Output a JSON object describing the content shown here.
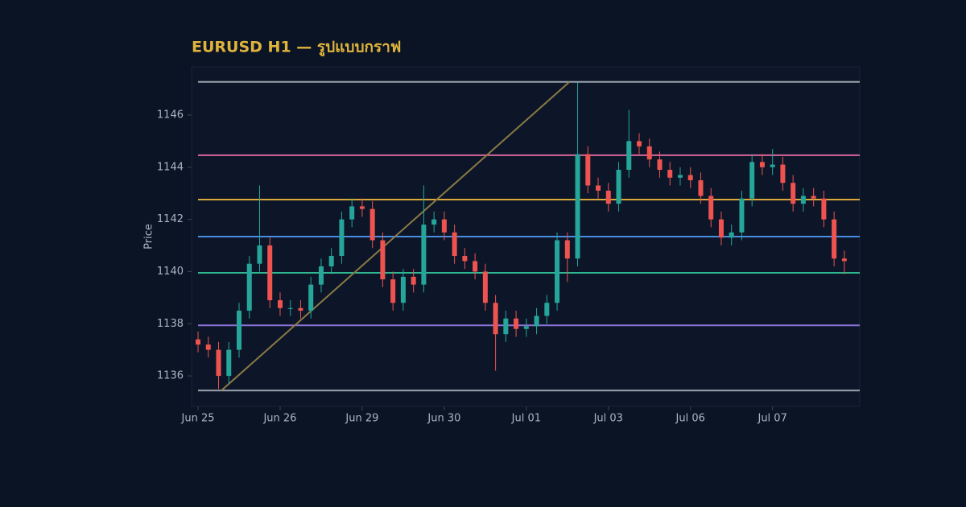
{
  "chart_data": {
    "type": "candlestick",
    "title": "EURUSD H1 — รูปแบบกราฟ",
    "y_label": "Price",
    "up_color": "#26a69a",
    "down_color": "#ef5350",
    "xlim": [
      -0.63,
      64.5
    ],
    "xticks": [
      {
        "value": 0,
        "label": "Jun 25"
      },
      {
        "value": 8,
        "label": "Jun 26"
      },
      {
        "value": 16,
        "label": "Jun 29"
      },
      {
        "value": 24,
        "label": "Jun 30"
      },
      {
        "value": 32,
        "label": "Jul 01"
      },
      {
        "value": 40,
        "label": "Jul 03"
      },
      {
        "value": 48,
        "label": "Jul 06"
      },
      {
        "value": 56,
        "label": "Jul 07"
      }
    ],
    "ylim": [
      1134.83,
      1147.85
    ],
    "yticks": [
      1136,
      1138,
      1140,
      1142,
      1144,
      1146
    ],
    "open": [
      1137.4,
      1137.2,
      1137.0,
      1136.0,
      1137.0,
      1138.5,
      1140.3,
      1141.0,
      1138.9,
      1138.6,
      1138.6,
      1138.5,
      1139.5,
      1140.2,
      1140.6,
      1142.0,
      1142.5,
      1142.4,
      1141.2,
      1139.7,
      1138.8,
      1139.8,
      1139.5,
      1141.8,
      1142.0,
      1141.5,
      1140.6,
      1140.4,
      1140.0,
      1138.8,
      1137.6,
      1138.2,
      1137.8,
      1137.9,
      1138.3,
      1138.8,
      1141.2,
      1140.5,
      1144.5,
      1143.3,
      1143.1,
      1142.6,
      1143.9,
      1145.0,
      1144.8,
      1144.3,
      1143.9,
      1143.6,
      1143.7,
      1143.5,
      1142.9,
      1142.0,
      1141.3,
      1141.5,
      1142.8,
      1144.2,
      1144.0,
      1144.1,
      1143.4,
      1142.6,
      1142.9,
      1142.8,
      1142.0,
      1140.5
    ],
    "high": [
      1137.7,
      1137.5,
      1137.3,
      1137.3,
      1138.8,
      1140.6,
      1143.3,
      1141.3,
      1139.2,
      1138.9,
      1138.9,
      1139.8,
      1140.5,
      1140.9,
      1142.3,
      1142.8,
      1142.8,
      1142.7,
      1141.5,
      1140.0,
      1140.1,
      1140.1,
      1143.3,
      1142.3,
      1142.3,
      1141.8,
      1140.9,
      1140.7,
      1140.3,
      1139.1,
      1138.5,
      1138.5,
      1138.2,
      1138.6,
      1139.1,
      1141.5,
      1141.5,
      1147.25,
      1144.8,
      1143.6,
      1143.4,
      1144.2,
      1146.2,
      1145.3,
      1145.1,
      1144.6,
      1144.2,
      1144.0,
      1144.0,
      1143.8,
      1143.2,
      1142.3,
      1141.8,
      1143.1,
      1144.5,
      1144.5,
      1144.7,
      1144.4,
      1143.7,
      1143.2,
      1143.2,
      1143.1,
      1142.3,
      1140.8
    ],
    "low": [
      1136.9,
      1136.7,
      1135.5,
      1135.7,
      1136.7,
      1138.2,
      1140.0,
      1138.6,
      1138.3,
      1138.3,
      1138.2,
      1138.2,
      1139.2,
      1139.9,
      1140.3,
      1141.7,
      1142.1,
      1140.9,
      1139.4,
      1138.5,
      1138.5,
      1139.2,
      1139.2,
      1141.5,
      1141.2,
      1140.3,
      1140.1,
      1139.7,
      1138.5,
      1136.2,
      1137.3,
      1137.5,
      1137.5,
      1137.6,
      1138.0,
      1138.5,
      1139.6,
      1140.2,
      1143.0,
      1142.8,
      1142.3,
      1142.3,
      1143.6,
      1144.5,
      1144.0,
      1143.6,
      1143.3,
      1143.3,
      1143.2,
      1142.6,
      1141.7,
      1141.0,
      1141.0,
      1141.2,
      1142.5,
      1143.7,
      1143.7,
      1143.1,
      1142.3,
      1142.3,
      1142.5,
      1141.7,
      1140.2,
      1139.9
    ],
    "close": [
      1137.2,
      1137.0,
      1136.0,
      1137.0,
      1138.5,
      1140.3,
      1141.0,
      1138.9,
      1138.6,
      1138.6,
      1138.5,
      1139.5,
      1140.2,
      1140.6,
      1142.0,
      1142.5,
      1142.4,
      1141.2,
      1139.7,
      1138.8,
      1139.8,
      1139.5,
      1141.8,
      1142.0,
      1141.5,
      1140.6,
      1140.4,
      1140.0,
      1138.8,
      1137.6,
      1138.2,
      1137.8,
      1137.9,
      1138.3,
      1138.8,
      1141.2,
      1140.5,
      1144.5,
      1143.3,
      1143.1,
      1142.6,
      1143.9,
      1145.0,
      1144.8,
      1144.3,
      1143.9,
      1143.6,
      1143.7,
      1143.5,
      1142.9,
      1142.0,
      1141.3,
      1141.5,
      1142.8,
      1144.2,
      1144.0,
      1144.1,
      1143.4,
      1142.6,
      1142.9,
      1142.8,
      1142.0,
      1140.5,
      1140.4
    ],
    "levels": [
      {
        "value": 1147.27,
        "color": "#9aa3ad"
      },
      {
        "value": 1144.46,
        "color": "#d9679a"
      },
      {
        "value": 1142.76,
        "color": "#d8a93a"
      },
      {
        "value": 1141.34,
        "color": "#4a8de0"
      },
      {
        "value": 1139.95,
        "color": "#2fb88f"
      },
      {
        "value": 1137.94,
        "color": "#8b72d8"
      },
      {
        "value": 1135.44,
        "color": "#9aa3ad"
      }
    ],
    "trendline": {
      "x": [
        2.27,
        36.2
      ],
      "y": [
        1135.44,
        1147.27
      ],
      "color": "#8c7a45"
    }
  }
}
